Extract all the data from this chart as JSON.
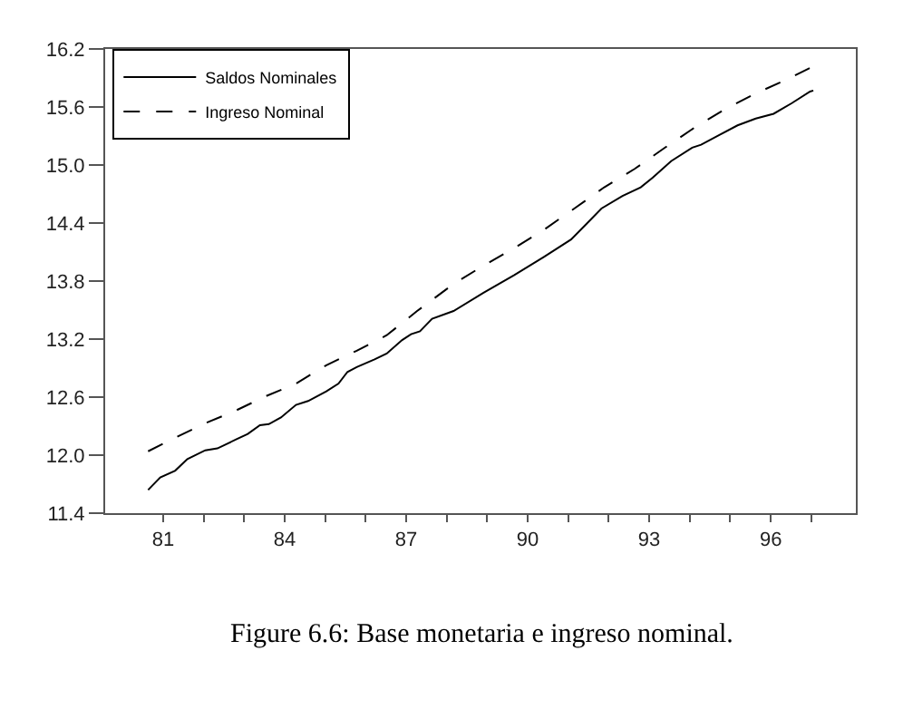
{
  "chart_data": {
    "type": "line",
    "annotations": [
      "Figure 6.6: Base monetaria e ingreso nominal."
    ],
    "series": [
      {
        "name": "Saldos Nominales",
        "color": "#000000",
        "line_style": "solid",
        "x": [
          80.63,
          80.93,
          81.3,
          81.6,
          82.04,
          82.34,
          82.79,
          83.09,
          83.39,
          83.61,
          83.91,
          84.28,
          84.58,
          85.03,
          85.33,
          85.55,
          85.78,
          86.22,
          86.52,
          86.9,
          87.12,
          87.34,
          87.64,
          88.17,
          88.91,
          89.66,
          90.4,
          91.07,
          91.45,
          91.82,
          92.34,
          92.79,
          93.09,
          93.54,
          94.06,
          94.28,
          94.73,
          95.18,
          95.63,
          96.07,
          96.52,
          96.97,
          97.05
        ],
        "values": [
          11.64,
          11.77,
          11.84,
          11.96,
          12.05,
          12.07,
          12.16,
          12.22,
          12.31,
          12.32,
          12.39,
          12.52,
          12.56,
          12.66,
          12.74,
          12.86,
          12.91,
          12.99,
          13.05,
          13.19,
          13.25,
          13.28,
          13.41,
          13.49,
          13.68,
          13.86,
          14.05,
          14.23,
          14.39,
          14.55,
          14.68,
          14.77,
          14.87,
          15.04,
          15.18,
          15.21,
          15.31,
          15.41,
          15.48,
          15.53,
          15.64,
          15.76,
          15.77
        ]
      },
      {
        "name": "Ingreso Nominal",
        "color": "#000000",
        "line_style": "dashed",
        "x": [
          80.63,
          81.3,
          82.04,
          82.79,
          83.54,
          84.28,
          85.03,
          85.78,
          86.52,
          87.27,
          88.17,
          88.91,
          89.66,
          90.4,
          91.15,
          91.89,
          92.64,
          93.39,
          94.13,
          94.88,
          95.63,
          96.37,
          97.05
        ],
        "values": [
          12.04,
          12.18,
          12.33,
          12.46,
          12.61,
          12.74,
          12.93,
          13.08,
          13.24,
          13.49,
          13.77,
          13.96,
          14.14,
          14.33,
          14.55,
          14.77,
          14.96,
          15.18,
          15.39,
          15.58,
          15.74,
          15.88,
          16.02
        ]
      }
    ],
    "xlim": [
      79.57,
      98.1
    ],
    "xticks": [
      81,
      {
        "value": 82,
        "label": null
      },
      {
        "value": 83,
        "label": null
      },
      84,
      {
        "value": 85,
        "label": null
      },
      {
        "value": 86,
        "label": null
      },
      87,
      {
        "value": 88,
        "label": null
      },
      {
        "value": 89,
        "label": null
      },
      90,
      {
        "value": 91,
        "label": null
      },
      {
        "value": 92,
        "label": null
      },
      93,
      {
        "value": 94,
        "label": null
      },
      {
        "value": 95,
        "label": null
      },
      96,
      {
        "value": 97,
        "label": null
      }
    ],
    "ylim": [
      11.4,
      16.2
    ],
    "yticks": [
      11.4,
      {
        "value": 12.0,
        "label": "12.0"
      },
      12.6,
      13.2,
      13.8,
      14.4,
      {
        "value": 15.0,
        "label": "15.0"
      },
      15.6,
      16.2
    ],
    "legend": "top left"
  }
}
